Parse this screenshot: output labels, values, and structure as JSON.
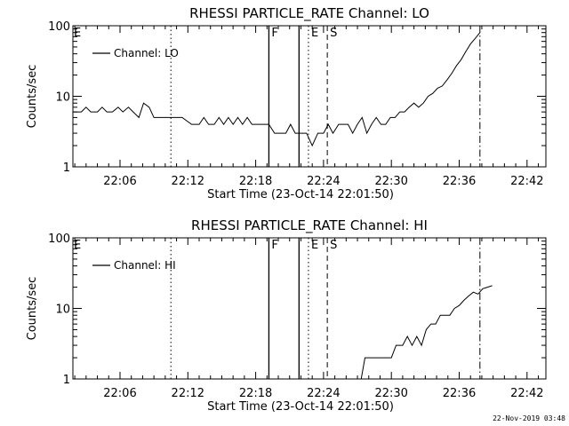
{
  "timestamp": "22-Nov-2019 03:48",
  "colors": {
    "background": "#ffffff",
    "foreground": "#000000"
  },
  "chart_data": [
    {
      "type": "line",
      "title": "RHESSI PARTICLE_RATE Channel: LO",
      "xlabel": "Start Time (23-Oct-14 22:01:50)",
      "ylabel": "Counts/sec",
      "yscale": "log",
      "ylim": [
        1,
        100
      ],
      "yticks": [
        1,
        10,
        100
      ],
      "ytick_labels": [
        "1",
        "10",
        "100"
      ],
      "xlim": [
        "22:01:50",
        "22:43:40"
      ],
      "xtick_labels": [
        "22:06",
        "22:12",
        "22:18",
        "22:24",
        "22:30",
        "22:36",
        "22:42"
      ],
      "legend": {
        "label": "Channel: LO",
        "position": "top-left"
      },
      "markers": [
        {
          "time": "22:10:30",
          "style": "dotted",
          "label": ""
        },
        {
          "time": "22:19:10",
          "style": "solid",
          "label": "F"
        },
        {
          "time": "22:21:50",
          "style": "solid",
          "label": ""
        },
        {
          "time": "22:22:40",
          "style": "dotted",
          "label": "E"
        },
        {
          "time": "22:24:20",
          "style": "dashed",
          "label": "S"
        },
        {
          "time": "22:37:50",
          "style": "dashdot",
          "label": ""
        }
      ],
      "left_label": "E",
      "series": [
        {
          "name": "Channel: LO",
          "points": [
            [
              "22:01:50",
              6
            ],
            [
              "22:02:35",
              6
            ],
            [
              "22:03:00",
              7
            ],
            [
              "22:03:25",
              6
            ],
            [
              "22:04:00",
              6
            ],
            [
              "22:04:25",
              7
            ],
            [
              "22:04:50",
              6
            ],
            [
              "22:05:20",
              6
            ],
            [
              "22:05:50",
              7
            ],
            [
              "22:06:15",
              6
            ],
            [
              "22:06:45",
              7
            ],
            [
              "22:07:10",
              6
            ],
            [
              "22:07:40",
              5
            ],
            [
              "22:08:05",
              8
            ],
            [
              "22:08:35",
              7
            ],
            [
              "22:09:00",
              5
            ],
            [
              "22:10:30",
              5
            ],
            [
              "22:11:30",
              5
            ],
            [
              "22:12:20",
              4
            ],
            [
              "22:13:00",
              4
            ],
            [
              "22:13:25",
              5
            ],
            [
              "22:13:50",
              4
            ],
            [
              "22:14:20",
              4
            ],
            [
              "22:14:45",
              5
            ],
            [
              "22:15:10",
              4
            ],
            [
              "22:15:35",
              5
            ],
            [
              "22:16:00",
              4
            ],
            [
              "22:16:25",
              5
            ],
            [
              "22:16:50",
              4
            ],
            [
              "22:17:15",
              5
            ],
            [
              "22:17:40",
              4
            ],
            [
              "22:19:10",
              4
            ],
            [
              "22:19:40",
              3
            ],
            [
              "22:20:40",
              3
            ],
            [
              "22:21:05",
              4
            ],
            [
              "22:21:30",
              3
            ],
            [
              "22:22:00",
              3
            ],
            [
              "22:22:30",
              3
            ],
            [
              "22:23:00",
              2
            ],
            [
              "22:23:30",
              3
            ],
            [
              "22:24:00",
              3
            ],
            [
              "22:24:25",
              4
            ],
            [
              "22:24:50",
              3
            ],
            [
              "22:25:20",
              4
            ],
            [
              "22:25:45",
              4
            ],
            [
              "22:26:10",
              4
            ],
            [
              "22:26:35",
              3
            ],
            [
              "22:27:00",
              4
            ],
            [
              "22:27:25",
              5
            ],
            [
              "22:27:50",
              3
            ],
            [
              "22:28:15",
              4
            ],
            [
              "22:28:40",
              5
            ],
            [
              "22:29:05",
              4
            ],
            [
              "22:29:30",
              4
            ],
            [
              "22:29:55",
              5
            ],
            [
              "22:30:20",
              5
            ],
            [
              "22:30:45",
              6
            ],
            [
              "22:31:10",
              6
            ],
            [
              "22:31:35",
              7
            ],
            [
              "22:32:00",
              8
            ],
            [
              "22:32:25",
              7
            ],
            [
              "22:32:50",
              8
            ],
            [
              "22:33:15",
              10
            ],
            [
              "22:33:40",
              11
            ],
            [
              "22:34:05",
              13
            ],
            [
              "22:34:30",
              14
            ],
            [
              "22:34:55",
              17
            ],
            [
              "22:35:20",
              21
            ],
            [
              "22:35:45",
              27
            ],
            [
              "22:36:10",
              33
            ],
            [
              "22:36:35",
              43
            ],
            [
              "22:37:00",
              55
            ],
            [
              "22:37:25",
              66
            ],
            [
              "22:37:50",
              80
            ]
          ]
        }
      ]
    },
    {
      "type": "line",
      "title": "RHESSI PARTICLE_RATE Channel: HI",
      "xlabel": "Start Time (23-Oct-14 22:01:50)",
      "ylabel": "Counts/sec",
      "yscale": "log",
      "ylim": [
        1,
        100
      ],
      "yticks": [
        1,
        10,
        100
      ],
      "ytick_labels": [
        "1",
        "10",
        "100"
      ],
      "xlim": [
        "22:01:50",
        "22:43:40"
      ],
      "xtick_labels": [
        "22:06",
        "22:12",
        "22:18",
        "22:24",
        "22:30",
        "22:36",
        "22:42"
      ],
      "legend": {
        "label": "Channel: HI",
        "position": "top-left"
      },
      "markers": [
        {
          "time": "22:10:30",
          "style": "dotted",
          "label": ""
        },
        {
          "time": "22:19:10",
          "style": "solid",
          "label": "F"
        },
        {
          "time": "22:21:50",
          "style": "solid",
          "label": ""
        },
        {
          "time": "22:22:40",
          "style": "dotted",
          "label": "E"
        },
        {
          "time": "22:24:20",
          "style": "dashed",
          "label": "S"
        },
        {
          "time": "22:37:50",
          "style": "dashdot",
          "label": ""
        }
      ],
      "left_label": "E",
      "series": [
        {
          "name": "Channel: HI",
          "points": [
            [
              "22:27:00",
              0.5
            ],
            [
              "22:27:40",
              2
            ],
            [
              "22:30:00",
              2
            ],
            [
              "22:30:25",
              3
            ],
            [
              "22:31:00",
              3
            ],
            [
              "22:31:25",
              4
            ],
            [
              "22:31:50",
              3
            ],
            [
              "22:32:15",
              4
            ],
            [
              "22:32:40",
              3
            ],
            [
              "22:33:05",
              5
            ],
            [
              "22:33:30",
              6
            ],
            [
              "22:33:55",
              6
            ],
            [
              "22:34:20",
              8
            ],
            [
              "22:35:10",
              8
            ],
            [
              "22:35:35",
              10
            ],
            [
              "22:36:00",
              11
            ],
            [
              "22:36:25",
              13
            ],
            [
              "22:36:50",
              15
            ],
            [
              "22:37:15",
              17
            ],
            [
              "22:37:40",
              16
            ],
            [
              "22:38:05",
              19
            ],
            [
              "22:38:30",
              20
            ],
            [
              "22:38:55",
              21
            ]
          ]
        }
      ]
    }
  ]
}
